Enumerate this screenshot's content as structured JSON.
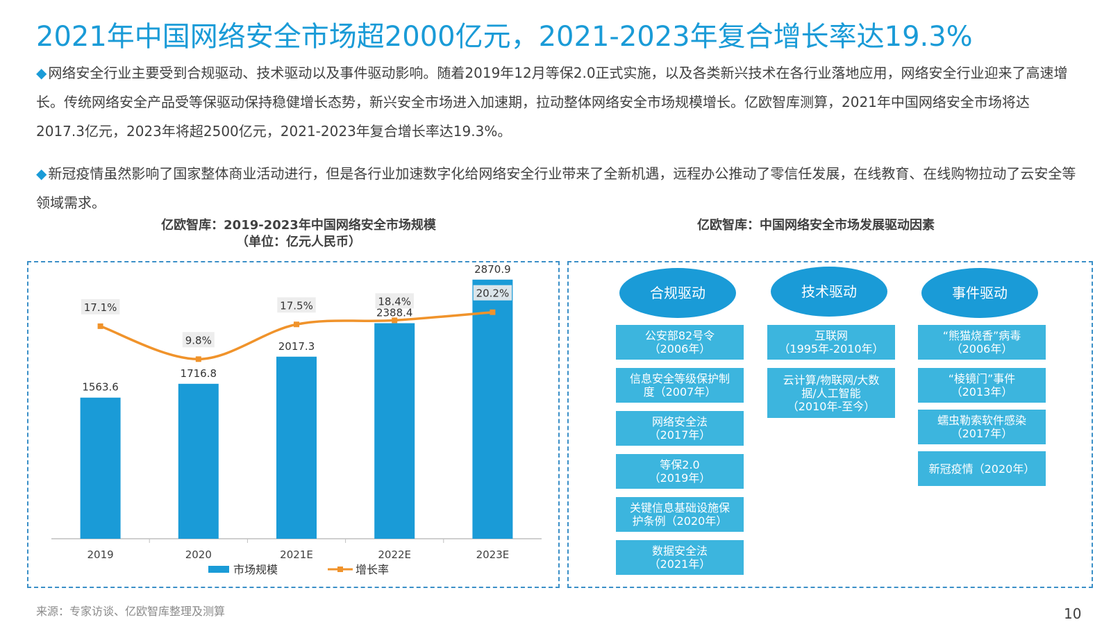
{
  "title": "2021年中国网络安全市场超2000亿元，2021-2023年复合增长率达19.3%",
  "paragraphs": {
    "p1": "网络安全行业主要受到合规驱动、技术驱动以及事件驱动影响。随着2019年12月等保2.0正式实施，以及各类新兴技术在各行业落地应用，网络安全行业迎来了高速增长。传统网络安全产品受等保驱动保持稳健增长态势，新兴安全市场进入加速期，拉动整体网络安全市场规模增长。亿欧智库测算，2021年中国网络安全市场将达2017.3亿元，2023年将超2500亿元，2021-2023年复合增长率达19.3%。",
    "p2": "新冠疫情虽然影响了国家整体商业活动进行，但是各行业加速数字化给网络安全行业带来了全新机遇，远程办公推动了零信任发展，在线教育、在线购物拉动了云安全等领域需求。",
    "bullet": "◆"
  },
  "chart_titles": {
    "left_line1": "亿欧智库：2019-2023年中国网络安全市场规模",
    "left_line2": "（单位：亿元人民币）",
    "right": "亿欧智库：中国网络安全市场发展驱动因素"
  },
  "chart_data": {
    "type": "bar",
    "categories": [
      "2019",
      "2020",
      "2021E",
      "2022E",
      "2023E"
    ],
    "series": [
      {
        "name": "市场规模",
        "type": "bar",
        "values": [
          1563.6,
          1716.8,
          2017.3,
          2388.4,
          2870.9
        ],
        "labels": [
          "1563.6",
          "1716.8",
          "2017.3",
          "2388.4",
          "2870.9"
        ],
        "color": "#1a9bd7"
      },
      {
        "name": "增长率",
        "type": "line",
        "values": [
          17.1,
          9.8,
          17.5,
          18.4,
          20.2
        ],
        "labels": [
          "17.1%",
          "9.8%",
          "17.5%",
          "18.4%",
          "20.2%"
        ],
        "color": "#f0932b"
      }
    ],
    "ylim": [
      0,
      3000
    ],
    "y2lim": [
      -30,
      30
    ],
    "legend": "bottom"
  },
  "drivers": [
    {
      "label": "合规驱动",
      "items": [
        "公安部82号令\n（2006年）",
        "信息安全等级保护制\n度（2007年）",
        "网络安全法\n（2017年）",
        "等保2.0\n（2019年）",
        "关键信息基础设施保\n护条例（2020年）",
        "数据安全法\n（2021年）"
      ]
    },
    {
      "label": "技术驱动",
      "items": [
        "互联网\n（1995年-2010年）",
        "云计算/物联网/大数\n据/人工智能\n（2010年-至今）"
      ]
    },
    {
      "label": "事件驱动",
      "items": [
        "“熊猫烧香”病毒\n（2006年）",
        "“棱镜门”事件\n（2013年）",
        "蠕虫勒索软件感染\n（2017年）",
        "新冠疫情（2020年）"
      ]
    }
  ],
  "source": "来源：专家访谈、亿欧智库整理及测算",
  "page_number": "10"
}
